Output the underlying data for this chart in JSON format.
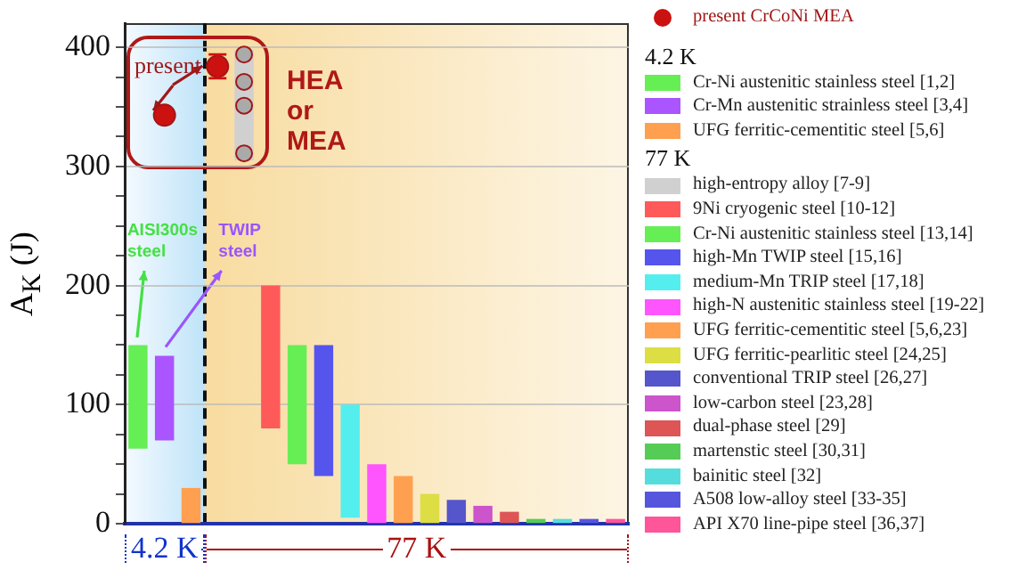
{
  "chart_data": {
    "type": "bar",
    "ylabel": "A$_{K}$ (J)",
    "categories": [
      null,
      null,
      null,
      null,
      null,
      null,
      null,
      null,
      null,
      null,
      null,
      null,
      null,
      null,
      null,
      null,
      null,
      null,
      null
    ],
    "ylim": [
      0,
      420
    ],
    "yticks": [
      0,
      {
        "value": 25,
        "label": null
      },
      {
        "value": 50,
        "label": null
      },
      {
        "value": 75,
        "label": null
      },
      100,
      {
        "value": 125,
        "label": null
      },
      {
        "value": 150,
        "label": null
      },
      {
        "value": 175,
        "label": null
      },
      200,
      {
        "value": 225,
        "label": null
      },
      {
        "value": 250,
        "label": null
      },
      {
        "value": 275,
        "label": null
      },
      300,
      {
        "value": 325,
        "label": null
      },
      {
        "value": 350,
        "label": null
      },
      {
        "value": 375,
        "label": null
      },
      400
    ],
    "grid": "y",
    "tick_labels": "y",
    "legend": "right",
    "marker": "circle",
    "annotations": [
      "present",
      "HEA or MEA",
      "AISI300s steel",
      "TWIP steel",
      "4.2 K",
      "77 K"
    ],
    "series": [
      {
        "name": "present CrCoNi MEA",
        "type": "scatter",
        "color": "#cc1111",
        "values": [
          null,
          343,
          null,
          384,
          null,
          null,
          null,
          null,
          null,
          null,
          null,
          null,
          null,
          null,
          null,
          null,
          null,
          null,
          null
        ],
        "errors": [
          null,
          null,
          null,
          10,
          null,
          null,
          null,
          null,
          null,
          null,
          null,
          null,
          null,
          null,
          null,
          null,
          null,
          null,
          null
        ]
      },
      {
        "name": "Cr-Ni austenitic stainless steel [1,2]",
        "color": "#66ee55",
        "values": [
          87,
          null,
          null,
          null,
          null,
          null,
          null,
          null,
          null,
          null,
          null,
          null,
          null,
          null,
          null,
          null,
          null,
          null,
          null
        ],
        "base": [
          63,
          null,
          null,
          null,
          null,
          null,
          null,
          null,
          null,
          null,
          null,
          null,
          null,
          null,
          null,
          null,
          null,
          null,
          null
        ]
      },
      {
        "name": "Cr-Mn austenitic strainless steel [3,4]",
        "color": "#aa55ff",
        "values": [
          null,
          71,
          null,
          null,
          null,
          null,
          null,
          null,
          null,
          null,
          null,
          null,
          null,
          null,
          null,
          null,
          null,
          null,
          null
        ],
        "base": [
          null,
          70,
          null,
          null,
          null,
          null,
          null,
          null,
          null,
          null,
          null,
          null,
          null,
          null,
          null,
          null,
          null,
          null,
          null
        ]
      },
      {
        "name": "UFG ferritic-cementitic steel [5,6]",
        "color": "#ffa050",
        "values": [
          null,
          null,
          30,
          null,
          null,
          null,
          null,
          null,
          null,
          null,
          null,
          null,
          null,
          null,
          null,
          null,
          null,
          null,
          null
        ],
        "base": [
          null,
          null,
          0,
          null,
          null,
          null,
          null,
          null,
          null,
          null,
          null,
          null,
          null,
          null,
          null,
          null,
          null,
          null,
          null
        ]
      },
      {
        "name": "high-entropy alloy [7-9]",
        "color": "#d0d0d0",
        "values": [
          null,
          null,
          null,
          null,
          93,
          null,
          null,
          null,
          null,
          null,
          null,
          null,
          null,
          null,
          null,
          null,
          null,
          null,
          null
        ],
        "base": [
          null,
          null,
          null,
          null,
          305,
          null,
          null,
          null,
          null,
          null,
          null,
          null,
          null,
          null,
          null,
          null,
          null,
          null,
          null
        ]
      },
      {
        "type": "scatter",
        "color": "#aaaaaa",
        "values": [
          null,
          null,
          null,
          null,
          394,
          null,
          null,
          null,
          null,
          null,
          null,
          null,
          null,
          null,
          null,
          null,
          null,
          null,
          null
        ]
      },
      {
        "type": "scatter",
        "color": "#aaaaaa",
        "values": [
          null,
          null,
          null,
          null,
          371,
          null,
          null,
          null,
          null,
          null,
          null,
          null,
          null,
          null,
          null,
          null,
          null,
          null,
          null
        ]
      },
      {
        "type": "scatter",
        "color": "#aaaaaa",
        "values": [
          null,
          null,
          null,
          null,
          351,
          null,
          null,
          null,
          null,
          null,
          null,
          null,
          null,
          null,
          null,
          null,
          null,
          null,
          null
        ]
      },
      {
        "type": "scatter",
        "color": "#aaaaaa",
        "values": [
          null,
          null,
          null,
          null,
          311,
          null,
          null,
          null,
          null,
          null,
          null,
          null,
          null,
          null,
          null,
          null,
          null,
          null,
          null
        ]
      },
      {
        "name": "9Ni cryogenic steel [10-12]",
        "color": "#ff5a5a",
        "values": [
          null,
          null,
          null,
          null,
          null,
          120,
          null,
          null,
          null,
          null,
          null,
          null,
          null,
          null,
          null,
          null,
          null,
          null,
          null
        ],
        "base": [
          null,
          null,
          null,
          null,
          null,
          80,
          null,
          null,
          null,
          null,
          null,
          null,
          null,
          null,
          null,
          null,
          null,
          null,
          null
        ]
      },
      {
        "name": "Cr-Ni austenitic stainless steel [13,14]",
        "color": "#66ee55",
        "values": [
          null,
          null,
          null,
          null,
          null,
          null,
          100,
          null,
          null,
          null,
          null,
          null,
          null,
          null,
          null,
          null,
          null,
          null,
          null
        ],
        "base": [
          null,
          null,
          null,
          null,
          null,
          null,
          50,
          null,
          null,
          null,
          null,
          null,
          null,
          null,
          null,
          null,
          null,
          null,
          null
        ]
      },
      {
        "name": "high-Mn TWIP steel [15,16]",
        "color": "#5555ee",
        "values": [
          null,
          null,
          null,
          null,
          null,
          null,
          null,
          110,
          null,
          null,
          null,
          null,
          null,
          null,
          null,
          null,
          null,
          null,
          null
        ],
        "base": [
          null,
          null,
          null,
          null,
          null,
          null,
          null,
          40,
          null,
          null,
          null,
          null,
          null,
          null,
          null,
          null,
          null,
          null,
          null
        ]
      },
      {
        "name": "medium-Mn TRIP steel [17,18]",
        "color": "#55eeee",
        "values": [
          null,
          null,
          null,
          null,
          null,
          null,
          null,
          null,
          95,
          null,
          null,
          null,
          null,
          null,
          null,
          null,
          null,
          null,
          null
        ],
        "base": [
          null,
          null,
          null,
          null,
          null,
          null,
          null,
          null,
          5,
          null,
          null,
          null,
          null,
          null,
          null,
          null,
          null,
          null,
          null
        ]
      },
      {
        "name": "high-N austenitic stainless steel [19-22]",
        "color": "#ff55ff",
        "values": [
          null,
          null,
          null,
          null,
          null,
          null,
          null,
          null,
          null,
          50,
          null,
          null,
          null,
          null,
          null,
          null,
          null,
          null,
          null
        ],
        "base": [
          null,
          null,
          null,
          null,
          null,
          null,
          null,
          null,
          null,
          0,
          null,
          null,
          null,
          null,
          null,
          null,
          null,
          null,
          null
        ]
      },
      {
        "name": "UFG ferritic-cementitic steel [5,6,23]",
        "color": "#ffa050",
        "values": [
          null,
          null,
          null,
          null,
          null,
          null,
          null,
          null,
          null,
          null,
          40,
          null,
          null,
          null,
          null,
          null,
          null,
          null,
          null
        ],
        "base": [
          null,
          null,
          null,
          null,
          null,
          null,
          null,
          null,
          null,
          null,
          0,
          null,
          null,
          null,
          null,
          null,
          null,
          null,
          null
        ]
      },
      {
        "name": "UFG ferritic-pearlitic steel [24,25]",
        "color": "#dddd44",
        "values": [
          null,
          null,
          null,
          null,
          null,
          null,
          null,
          null,
          null,
          null,
          null,
          25,
          null,
          null,
          null,
          null,
          null,
          null,
          null
        ],
        "base": [
          null,
          null,
          null,
          null,
          null,
          null,
          null,
          null,
          null,
          null,
          null,
          0,
          null,
          null,
          null,
          null,
          null,
          null,
          null
        ]
      },
      {
        "name": "conventional TRIP steel [26,27]",
        "color": "#5555cc",
        "values": [
          null,
          null,
          null,
          null,
          null,
          null,
          null,
          null,
          null,
          null,
          null,
          null,
          20,
          null,
          null,
          null,
          null,
          null,
          null
        ],
        "base": [
          null,
          null,
          null,
          null,
          null,
          null,
          null,
          null,
          null,
          null,
          null,
          null,
          0,
          null,
          null,
          null,
          null,
          null,
          null
        ]
      },
      {
        "name": "low-carbon steel [23,28]",
        "color": "#cc55cc",
        "values": [
          null,
          null,
          null,
          null,
          null,
          null,
          null,
          null,
          null,
          null,
          null,
          null,
          null,
          15,
          null,
          null,
          null,
          null,
          null
        ],
        "base": [
          null,
          null,
          null,
          null,
          null,
          null,
          null,
          null,
          null,
          null,
          null,
          null,
          null,
          0,
          null,
          null,
          null,
          null,
          null
        ]
      },
      {
        "name": "dual-phase steel [29]",
        "color": "#dd5555",
        "values": [
          null,
          null,
          null,
          null,
          null,
          null,
          null,
          null,
          null,
          null,
          null,
          null,
          null,
          null,
          10,
          null,
          null,
          null,
          null
        ],
        "base": [
          null,
          null,
          null,
          null,
          null,
          null,
          null,
          null,
          null,
          null,
          null,
          null,
          null,
          null,
          0,
          null,
          null,
          null,
          null
        ]
      },
      {
        "name": "martenstic steel [30,31]",
        "color": "#55cc55",
        "values": [
          null,
          null,
          null,
          null,
          null,
          null,
          null,
          null,
          null,
          null,
          null,
          null,
          null,
          null,
          null,
          4,
          null,
          null,
          null
        ],
        "base": [
          null,
          null,
          null,
          null,
          null,
          null,
          null,
          null,
          null,
          null,
          null,
          null,
          null,
          null,
          null,
          0,
          null,
          null,
          null
        ]
      },
      {
        "name": "bainitic steel [32]",
        "color": "#55dddd",
        "values": [
          null,
          null,
          null,
          null,
          null,
          null,
          null,
          null,
          null,
          null,
          null,
          null,
          null,
          null,
          null,
          null,
          4,
          null,
          null
        ],
        "base": [
          null,
          null,
          null,
          null,
          null,
          null,
          null,
          null,
          null,
          null,
          null,
          null,
          null,
          null,
          null,
          null,
          0,
          null,
          null
        ]
      },
      {
        "name": "A508 low-alloy steel [33-35]",
        "color": "#5555dd",
        "values": [
          null,
          null,
          null,
          null,
          null,
          null,
          null,
          null,
          null,
          null,
          null,
          null,
          null,
          null,
          null,
          null,
          null,
          4,
          null
        ],
        "base": [
          null,
          null,
          null,
          null,
          null,
          null,
          null,
          null,
          null,
          null,
          null,
          null,
          null,
          null,
          null,
          null,
          null,
          0,
          null
        ]
      },
      {
        "name": "API X70 line-pipe steel [36,37]",
        "color": "#ff5599",
        "values": [
          null,
          null,
          null,
          null,
          null,
          null,
          null,
          null,
          null,
          null,
          null,
          null,
          null,
          null,
          null,
          null,
          null,
          null,
          4
        ],
        "base": [
          null,
          null,
          null,
          null,
          null,
          null,
          null,
          null,
          null,
          null,
          null,
          null,
          null,
          null,
          null,
          null,
          null,
          null,
          0
        ]
      }
    ]
  }
}
